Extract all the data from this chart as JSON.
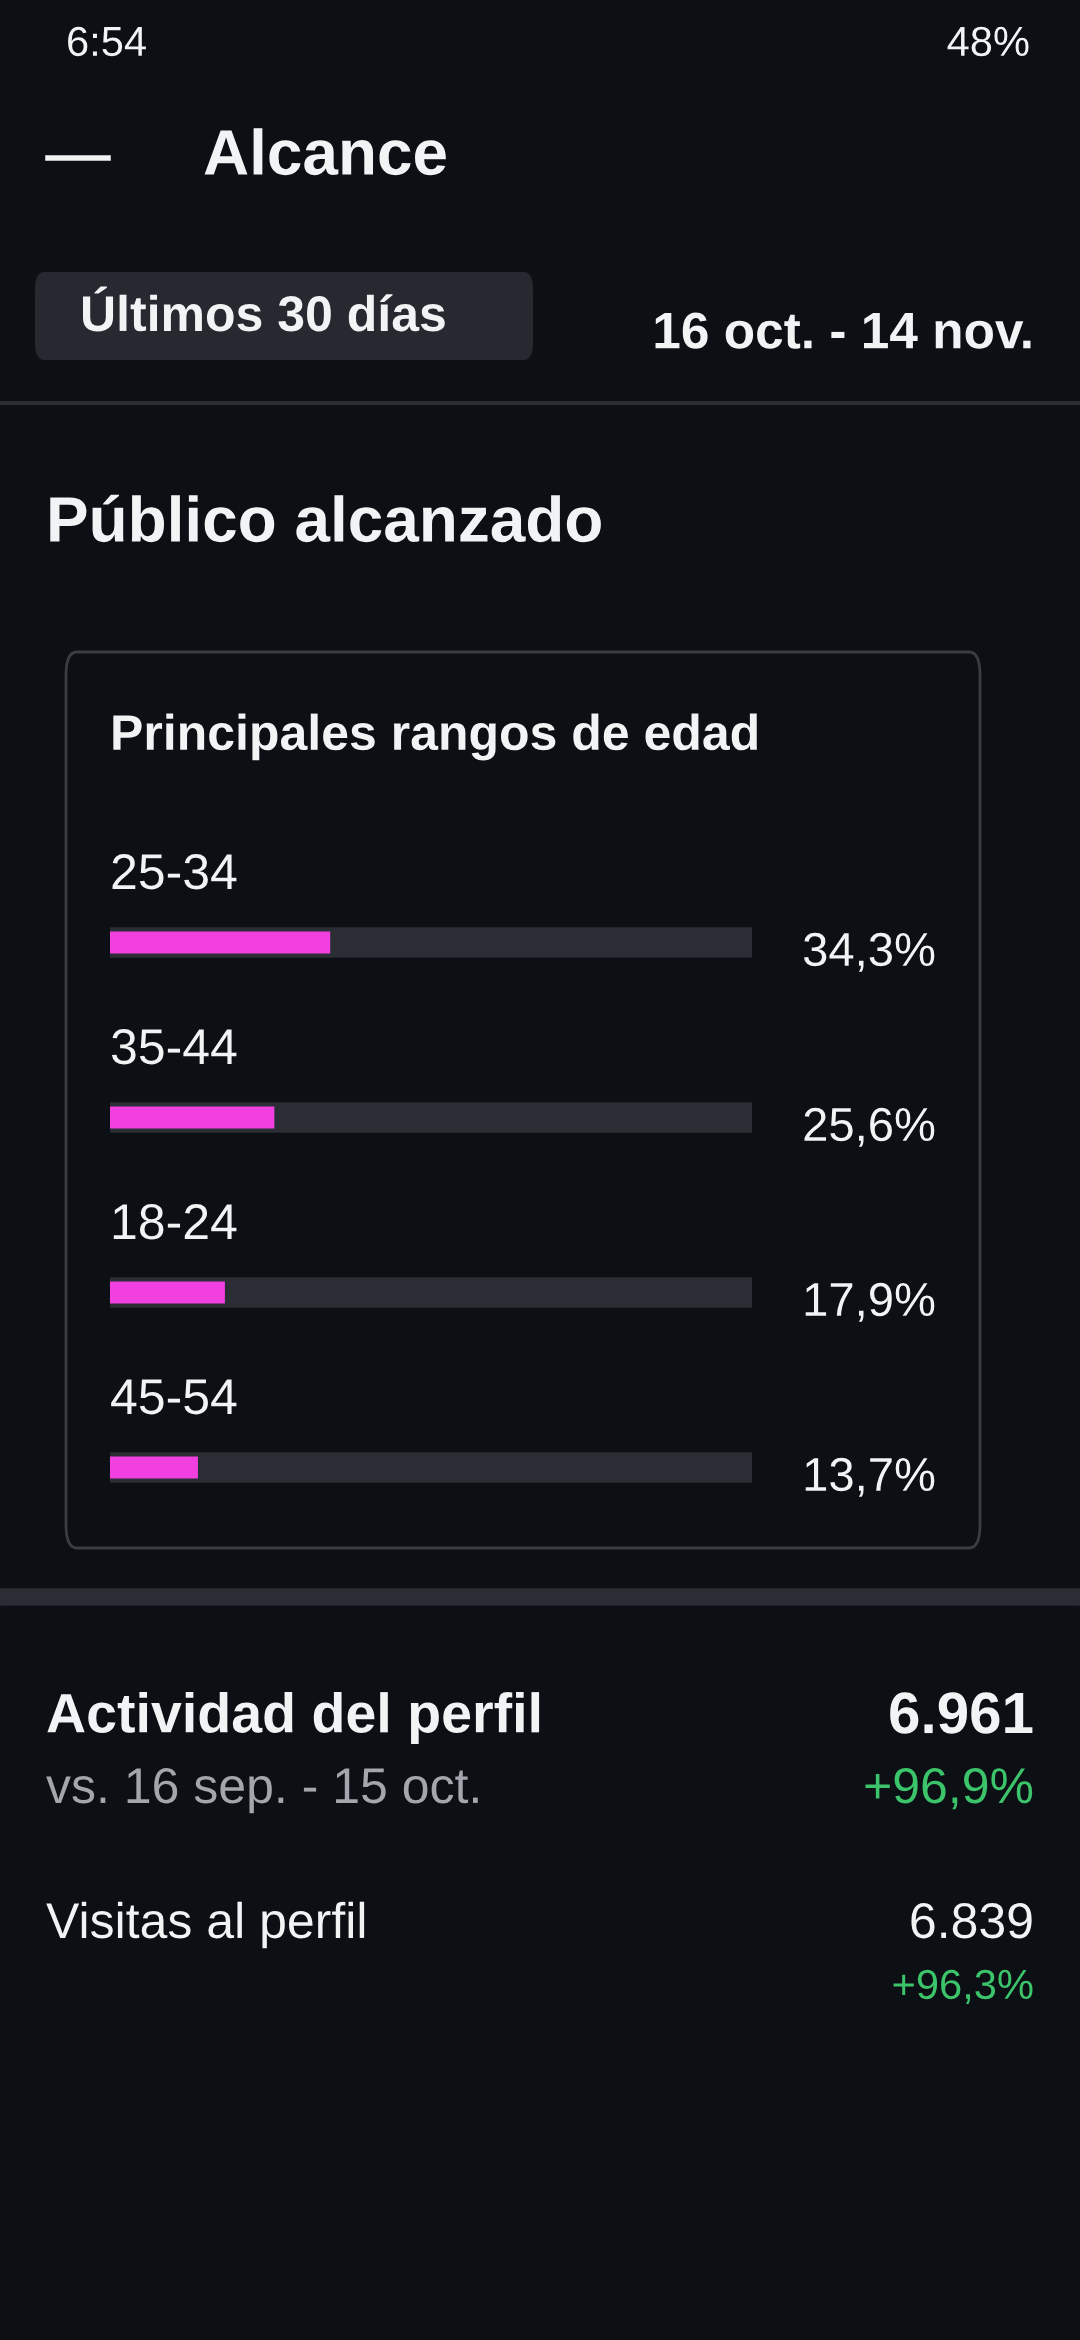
{
  "chart_data": [
    {
      "type": "bar",
      "orientation": "horizontal",
      "title": "Principales rangos de edad",
      "categories": [
        "25-34",
        "35-44",
        "18-24",
        "45-54"
      ],
      "values": [
        34.3,
        25.6,
        17.9,
        13.7
      ],
      "value_labels": [
        "34,3%",
        "25,6%",
        "17,9%",
        "13,7%"
      ],
      "color": "#f13fe0",
      "xlim": [
        0,
        100
      ],
      "annotations": [
        "6:54",
        "48%",
        "Alcance",
        "Últimos 30 días",
        "16 oct. - 14 nov.",
        "Público alcanzado"
      ]
    },
    {
      "type": "other",
      "title": "Actividad del perfil",
      "annotations": [
        "6.961",
        "vs. 16 sep. - 15 oct.",
        "+96,9%",
        "Visitas al perfil",
        "6.839",
        "+96,3%"
      ]
    }
  ]
}
